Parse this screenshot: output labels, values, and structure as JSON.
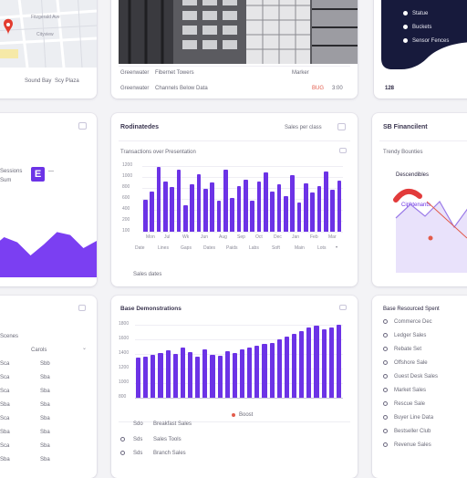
{
  "cards": {
    "map": {
      "street_label": "Fitzgerald Ave",
      "area_label": "Cityview",
      "caption_left": "Sound Bay",
      "caption_right": "Scy Plaza"
    },
    "building": {
      "meta_left": "Greenwater",
      "meta_center": "Fibernet Towers",
      "meta_right": "Marker",
      "foot_left": "Greenwater",
      "foot_center": "Channels Below Data",
      "foot_right_accent": "BUG",
      "foot_right": "3:00"
    },
    "dark_menu": {
      "items": [
        "Statue",
        "Buckets",
        "Sensor Fences"
      ],
      "foot": "128"
    },
    "left_stat": {
      "label_1": "Sessions",
      "label_2": "Sum",
      "badge": "E"
    },
    "monthly": {
      "title": "Rodinatedes",
      "dropdown": "Sales per class",
      "subtitle": "Transactions over Presentation",
      "ylabels": [
        "1200",
        "1000",
        "800",
        "600",
        "400",
        "200",
        "100"
      ],
      "xlabels": [
        "Mon",
        "Jul",
        "Wk",
        "Jun",
        "Aug",
        "Sep",
        "Oct",
        "Dec",
        "Jan",
        "Feb",
        "Mar"
      ],
      "bottom_labels": [
        "Date",
        "Lines",
        "Gaps",
        "Dates",
        "Paids",
        "Labs",
        "Soft",
        "Main",
        "Lots"
      ],
      "footer": "Sales dates",
      "marker": "•"
    },
    "right_stat": {
      "title": "SB Financilent",
      "subtitle": "Trendy Bounties",
      "line_1": "Descendibles",
      "line_2": "Ciphtenants"
    },
    "left_table": {
      "header_left": "Scenes",
      "header_right": "Carols",
      "rows": [
        {
          "a": "Sca",
          "b": "Sbb"
        },
        {
          "a": "Sca",
          "b": "Sba"
        },
        {
          "a": "Sca",
          "b": "Sba"
        },
        {
          "a": "Sba",
          "b": "Sba"
        },
        {
          "a": "Sca",
          "b": "Sba"
        },
        {
          "a": "Sba",
          "b": "Sba"
        },
        {
          "a": "Sca",
          "b": "Sba"
        },
        {
          "a": "Sba",
          "b": "Sba"
        }
      ]
    },
    "bottom_chart": {
      "title": "Base Demonstrations",
      "ylabels": [
        "1800",
        "1600",
        "1400",
        "1200",
        "1000",
        "800"
      ],
      "legend": "Boost",
      "list": [
        "Sdo",
        "Sds",
        "Sds"
      ],
      "list_right": [
        "Breakfast Sales",
        "Sales Tools",
        "Branch Sales"
      ]
    },
    "right_list": {
      "title": "Base Resourced Spent",
      "items": [
        "Commerce Dec",
        "Ledger Sales",
        "Rebate Set",
        "Offshore Sale",
        "Guest Desk Sales",
        "Market Sales",
        "Rescue Sale",
        "Buyer Line Data",
        "Bestseller Club",
        "Revenue Sales"
      ]
    }
  },
  "chart_data": [
    {
      "type": "bar",
      "title": "Transactions over Presentation",
      "xlabel": "",
      "ylabel": "",
      "ylim": [
        0,
        1200
      ],
      "values": [
        580,
        740,
        1180,
        920,
        820,
        1130,
        480,
        860,
        1050,
        780,
        900,
        560,
        1140,
        620,
        830,
        950,
        560,
        920,
        1080,
        740,
        870,
        650,
        1040,
        540,
        880,
        720,
        830,
        1100,
        760,
        930
      ],
      "color": "#6c33e6"
    },
    {
      "type": "bar",
      "title": "Base Demonstrations",
      "xlabel": "",
      "ylabel": "",
      "ylim": [
        600,
        1800
      ],
      "values": [
        1260,
        1280,
        1300,
        1330,
        1380,
        1320,
        1420,
        1350,
        1280,
        1400,
        1310,
        1290,
        1360,
        1330,
        1400,
        1420,
        1450,
        1480,
        1500,
        1560,
        1610,
        1650,
        1700,
        1750,
        1780,
        1720,
        1760,
        1800
      ],
      "color": "#6c33e6",
      "accent": "#e25b4b"
    },
    {
      "type": "area",
      "title": "",
      "xlabel": "",
      "ylabel": "",
      "ylim": [
        0,
        100
      ],
      "values": [
        40,
        55,
        48,
        30,
        45,
        62,
        58,
        40,
        50
      ],
      "color": "#7b3ff2"
    },
    {
      "type": "line",
      "title": "",
      "xlabel": "",
      "ylabel": "",
      "ylim": [
        0,
        100
      ],
      "values": [
        60,
        75,
        62,
        78,
        50,
        72
      ],
      "color": "#a889f2"
    }
  ]
}
